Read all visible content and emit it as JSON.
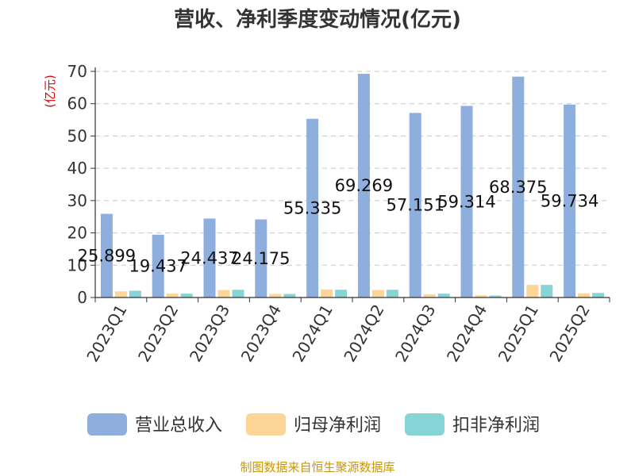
{
  "chart_data": {
    "type": "bar",
    "title": "营收、净利季度变动情况(亿元)",
    "ylabel": "(亿元)",
    "xlabel": "",
    "ylim": [
      0,
      70
    ],
    "yticks": [
      0,
      10,
      20,
      30,
      40,
      50,
      60,
      70
    ],
    "grid": true,
    "legend_position": "bottom",
    "categories": [
      "2023Q1",
      "2023Q2",
      "2023Q3",
      "2023Q4",
      "2024Q1",
      "2024Q2",
      "2024Q3",
      "2024Q4",
      "2025Q1",
      "2025Q2"
    ],
    "series": [
      {
        "name": "营业总收入",
        "color": "#8eaedd",
        "values": [
          25.899,
          19.437,
          24.437,
          24.175,
          55.335,
          69.269,
          57.151,
          59.314,
          68.375,
          59.734
        ],
        "labels": [
          "25.899",
          "19.437",
          "24.437",
          "24.175",
          "55.335",
          "69.269",
          "57.151",
          "59.314",
          "68.375",
          "59.734"
        ]
      },
      {
        "name": "归母净利润",
        "color": "#fdd596",
        "values": [
          1.9,
          1.2,
          2.3,
          1.1,
          2.5,
          2.3,
          1.0,
          0.7,
          3.9,
          1.3
        ]
      },
      {
        "name": "扣非净利润",
        "color": "#86d4d6",
        "values": [
          2.1,
          1.2,
          2.4,
          1.1,
          2.4,
          2.4,
          1.2,
          0.6,
          3.9,
          1.4
        ]
      }
    ]
  },
  "source": "制图数据来自恒生聚源数据库"
}
